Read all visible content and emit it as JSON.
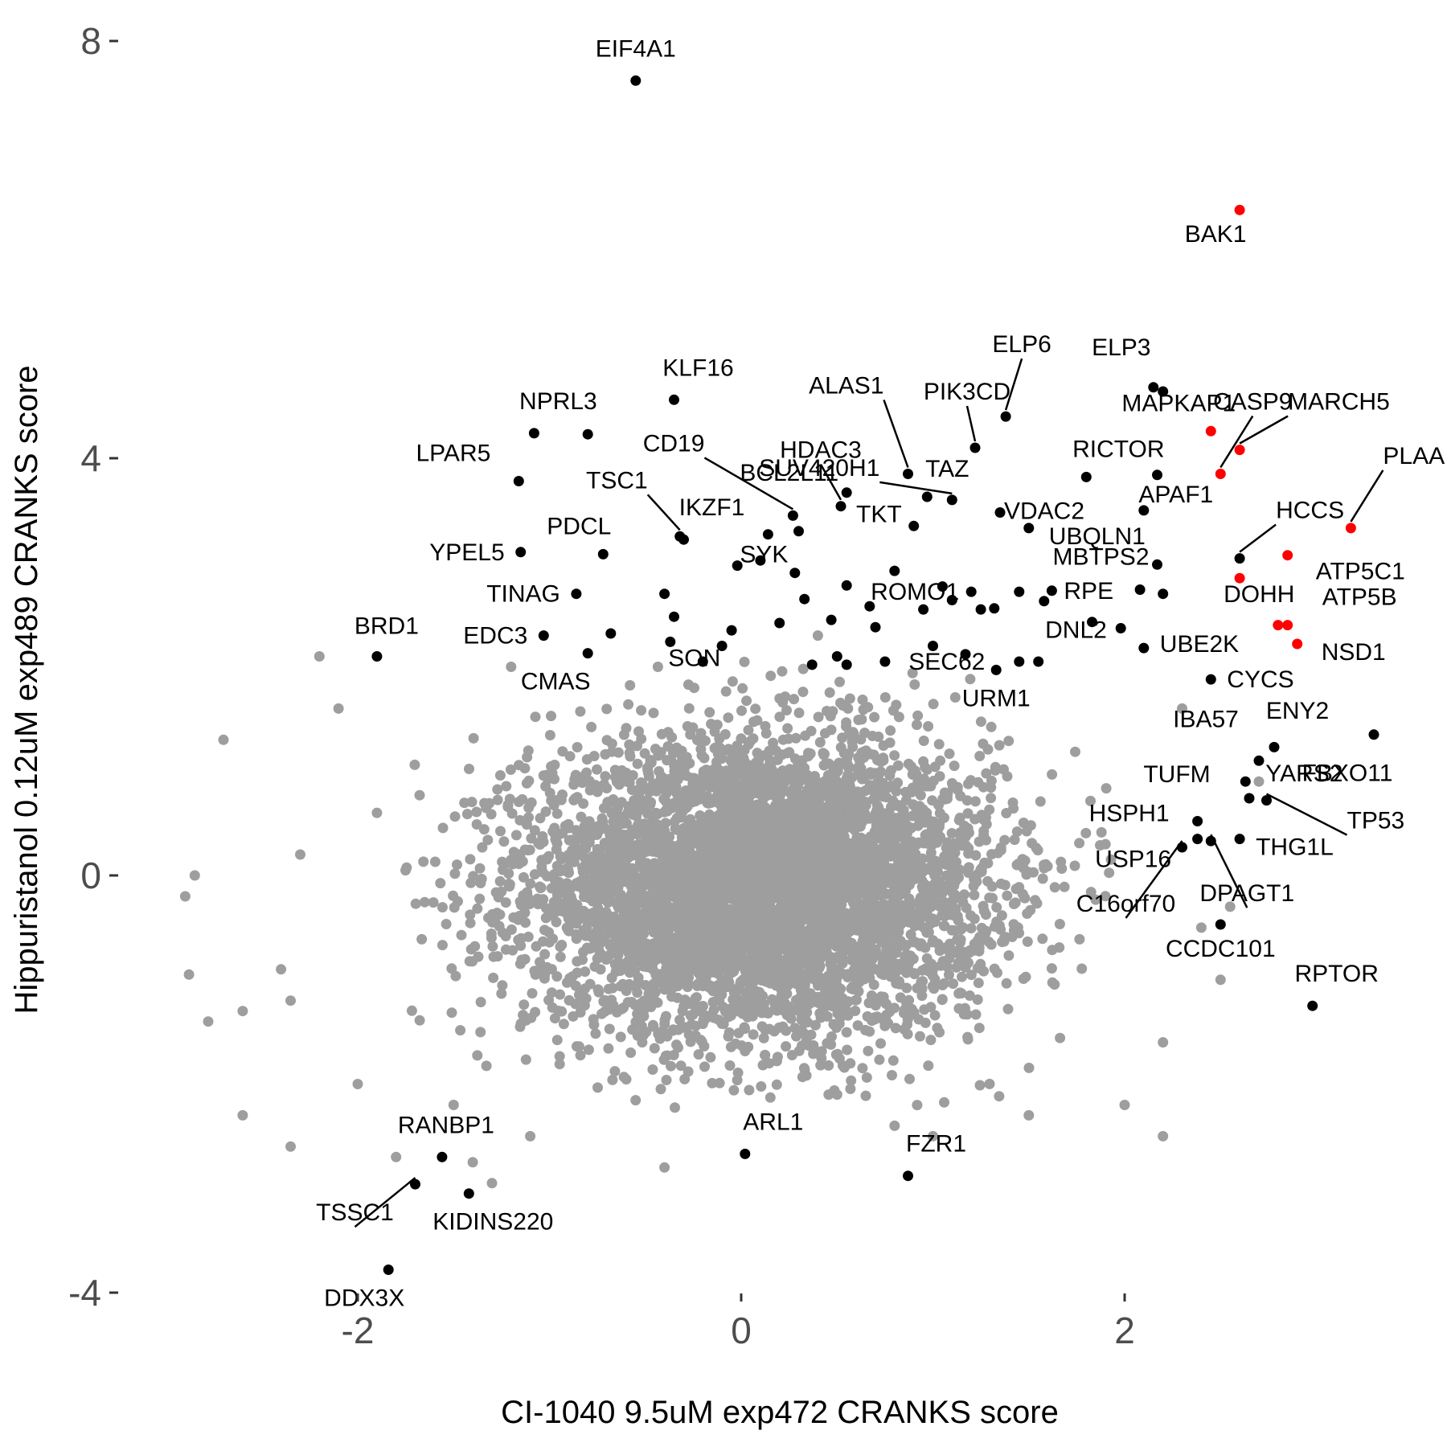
{
  "chart_data": {
    "type": "scatter",
    "title": "",
    "xlabel": "CI-1040 9.5uM exp472 CRANKS score",
    "ylabel": "Hippuristanol 0.12uM exp489 CRANKS score",
    "xlim": [
      -2.95,
      3.5
    ],
    "ylim": [
      -4.3,
      8.3
    ],
    "x_ticks": [
      -2,
      0,
      2
    ],
    "x_tick_labels": [
      "-2",
      "0",
      "2"
    ],
    "y_ticks": [
      -4,
      0,
      4,
      8
    ],
    "y_tick_labels": [
      "-4",
      "0",
      "4",
      "8"
    ],
    "grid": false,
    "legend": "none",
    "colors": {
      "background_points": "#9e9e9e",
      "labeled_points": "#000000",
      "highlighted_points": "#ff0000",
      "label_text": "#000000",
      "tick_text": "#4d4d4d"
    },
    "background_cloud": {
      "center": [
        0.1,
        -0.1
      ],
      "sd": [
        0.6,
        0.7
      ],
      "n": 5500,
      "outliers": [
        [
          -2.9,
          -0.2
        ],
        [
          -2.85,
          0.0
        ],
        [
          -2.88,
          -0.95
        ],
        [
          -2.78,
          -1.4
        ],
        [
          -2.6,
          -1.3
        ],
        [
          -2.7,
          1.3
        ],
        [
          -2.4,
          -0.9
        ],
        [
          -2.35,
          -1.2
        ],
        [
          -2.2,
          2.1
        ],
        [
          -2.3,
          0.2
        ],
        [
          -2.6,
          -2.3
        ],
        [
          -2.35,
          -2.6
        ],
        [
          -2.1,
          1.6
        ],
        [
          -1.9,
          0.6
        ],
        [
          -1.8,
          -2.7
        ],
        [
          -1.5,
          -2.2
        ],
        [
          -1.4,
          -2.75
        ],
        [
          -1.3,
          -2.95
        ],
        [
          -1.2,
          2.0
        ],
        [
          -1.1,
          -2.5
        ],
        [
          -2.0,
          -2.0
        ],
        [
          2.3,
          1.6
        ],
        [
          2.4,
          -0.5
        ],
        [
          2.5,
          -1.0
        ],
        [
          2.7,
          0.9
        ],
        [
          2.2,
          -1.6
        ],
        [
          2.0,
          -2.2
        ],
        [
          2.2,
          -2.5
        ],
        [
          1.9,
          0.3
        ],
        [
          1.5,
          -2.3
        ],
        [
          1.0,
          -2.5
        ],
        [
          2.55,
          -0.3
        ],
        [
          0.8,
          -2.4
        ],
        [
          -0.4,
          -2.8
        ],
        [
          0.4,
          2.3
        ]
      ]
    },
    "points": [
      {
        "label": "EIF4A1",
        "x": -0.55,
        "y": 7.62,
        "group": "labeled"
      },
      {
        "label": "BAK1",
        "x": 2.6,
        "y": 6.38,
        "group": "highlighted"
      },
      {
        "label": "ELP6",
        "x": 1.38,
        "y": 4.4,
        "group": "labeled"
      },
      {
        "label": "ELP3",
        "x": 2.15,
        "y": 4.68,
        "group": "labeled"
      },
      {
        "label": "",
        "x": 2.2,
        "y": 4.64,
        "group": "labeled"
      },
      {
        "label": "CASP9",
        "x": 2.5,
        "y": 3.85,
        "group": "highlighted"
      },
      {
        "label": "MAPKAP1",
        "x": 2.45,
        "y": 4.26,
        "group": "highlighted"
      },
      {
        "label": "MARCH5",
        "x": 2.6,
        "y": 4.08,
        "group": "highlighted"
      },
      {
        "label": "PLAA",
        "x": 3.18,
        "y": 3.33,
        "group": "highlighted"
      },
      {
        "label": "ATP5C1",
        "x": 2.85,
        "y": 3.07,
        "group": "highlighted"
      },
      {
        "label": "DOHH",
        "x": 2.6,
        "y": 2.85,
        "group": "highlighted"
      },
      {
        "label": "ATP5B",
        "x": 2.8,
        "y": 2.4,
        "group": "highlighted"
      },
      {
        "label": "",
        "x": 2.85,
        "y": 2.4,
        "group": "highlighted"
      },
      {
        "label": "NSD1",
        "x": 2.9,
        "y": 2.22,
        "group": "highlighted"
      },
      {
        "label": "KLF16",
        "x": -0.35,
        "y": 4.56,
        "group": "labeled"
      },
      {
        "label": "NPRL3",
        "x": -1.08,
        "y": 4.24,
        "group": "labeled"
      },
      {
        "label": "",
        "x": -0.8,
        "y": 4.23,
        "group": "labeled"
      },
      {
        "label": "LPAR5",
        "x": -1.16,
        "y": 3.78,
        "group": "labeled"
      },
      {
        "label": "YPEL5",
        "x": -1.15,
        "y": 3.1,
        "group": "labeled"
      },
      {
        "label": "PDCL",
        "x": -0.72,
        "y": 3.08,
        "group": "labeled"
      },
      {
        "label": "TINAG",
        "x": -0.86,
        "y": 2.7,
        "group": "labeled"
      },
      {
        "label": "BRD1",
        "x": -1.9,
        "y": 2.1,
        "group": "labeled"
      },
      {
        "label": "EDC3",
        "x": -1.03,
        "y": 2.3,
        "group": "labeled"
      },
      {
        "label": "CMAS",
        "x": -0.8,
        "y": 2.13,
        "group": "labeled"
      },
      {
        "label": "SON",
        "x": -0.37,
        "y": 2.24,
        "group": "labeled"
      },
      {
        "label": "TSC1",
        "x": -0.32,
        "y": 3.25,
        "group": "labeled"
      },
      {
        "label": "IKZF1",
        "x": -0.3,
        "y": 3.22,
        "group": "labeled"
      },
      {
        "label": "CD19",
        "x": 0.27,
        "y": 3.45,
        "group": "labeled"
      },
      {
        "label": "BCL2L11",
        "x": 0.55,
        "y": 3.67,
        "group": "labeled"
      },
      {
        "label": "HDAC3",
        "x": 0.52,
        "y": 3.54,
        "group": "labeled"
      },
      {
        "label": "ALAS1",
        "x": 0.87,
        "y": 3.85,
        "group": "labeled"
      },
      {
        "label": "PIK3CD",
        "x": 1.22,
        "y": 4.1,
        "group": "labeled"
      },
      {
        "label": "TAZ",
        "x": 0.97,
        "y": 3.63,
        "group": "labeled"
      },
      {
        "label": "VDAC2",
        "x": 1.35,
        "y": 3.48,
        "group": "labeled"
      },
      {
        "label": "RICTOR",
        "x": 1.8,
        "y": 3.82,
        "group": "labeled"
      },
      {
        "label": "",
        "x": 2.17,
        "y": 3.84,
        "group": "labeled"
      },
      {
        "label": "APAF1",
        "x": 2.1,
        "y": 3.5,
        "group": "labeled"
      },
      {
        "label": "SUV420H1",
        "x": 1.1,
        "y": 3.6,
        "group": "labeled"
      },
      {
        "label": "UBQLN1",
        "x": 1.5,
        "y": 3.33,
        "group": "labeled"
      },
      {
        "label": "MBTPS2",
        "x": 2.17,
        "y": 2.98,
        "group": "labeled"
      },
      {
        "label": "HCCS",
        "x": 2.6,
        "y": 3.04,
        "group": "labeled"
      },
      {
        "label": "TKT",
        "x": 0.9,
        "y": 3.35,
        "group": "labeled"
      },
      {
        "label": "SYK",
        "x": 0.14,
        "y": 3.27,
        "group": "labeled"
      },
      {
        "label": "ROMO1",
        "x": 1.2,
        "y": 2.72,
        "group": "labeled"
      },
      {
        "label": "RPE",
        "x": 1.62,
        "y": 2.73,
        "group": "labeled"
      },
      {
        "label": "",
        "x": 2.08,
        "y": 2.74,
        "group": "labeled"
      },
      {
        "label": "DNL2",
        "x": 1.83,
        "y": 2.43,
        "group": "labeled"
      },
      {
        "label": "",
        "x": 1.98,
        "y": 2.37,
        "group": "labeled"
      },
      {
        "label": "UBE2K",
        "x": 2.1,
        "y": 2.18,
        "group": "labeled"
      },
      {
        "label": "",
        "x": 2.2,
        "y": 2.7,
        "group": "labeled"
      },
      {
        "label": "CYCS",
        "x": 2.45,
        "y": 1.88,
        "group": "labeled"
      },
      {
        "label": "SEC62",
        "x": 1.45,
        "y": 2.05,
        "group": "labeled"
      },
      {
        "label": "URM1",
        "x": 1.33,
        "y": 1.97,
        "group": "labeled"
      },
      {
        "label": "ENY2",
        "x": 3.3,
        "y": 1.35,
        "group": "labeled"
      },
      {
        "label": "IBA57",
        "x": 2.78,
        "y": 1.23,
        "group": "labeled"
      },
      {
        "label": "FBXO11",
        "x": 2.7,
        "y": 1.1,
        "group": "labeled"
      },
      {
        "label": "YARS2",
        "x": 2.63,
        "y": 0.9,
        "group": "labeled"
      },
      {
        "label": "TP53",
        "x": 2.74,
        "y": 0.72,
        "group": "labeled"
      },
      {
        "label": "TUFM",
        "x": 2.65,
        "y": 0.74,
        "group": "labeled"
      },
      {
        "label": "HSPH1",
        "x": 2.38,
        "y": 0.52,
        "group": "labeled"
      },
      {
        "label": "THG1L",
        "x": 2.6,
        "y": 0.35,
        "group": "labeled"
      },
      {
        "label": "USP16",
        "x": 2.38,
        "y": 0.35,
        "group": "labeled"
      },
      {
        "label": "C16orf70",
        "x": 2.3,
        "y": 0.27,
        "group": "labeled"
      },
      {
        "label": "DPAGT1",
        "x": 2.45,
        "y": 0.33,
        "group": "labeled"
      },
      {
        "label": "CCDC101",
        "x": 2.5,
        "y": -0.47,
        "group": "labeled"
      },
      {
        "label": "RPTOR",
        "x": 2.98,
        "y": -1.25,
        "group": "labeled"
      },
      {
        "label": "ARL1",
        "x": 0.02,
        "y": -2.67,
        "group": "labeled"
      },
      {
        "label": "FZR1",
        "x": 0.87,
        "y": -2.88,
        "group": "labeled"
      },
      {
        "label": "RANBP1",
        "x": -1.56,
        "y": -2.7,
        "group": "labeled"
      },
      {
        "label": "TSSC1",
        "x": -1.7,
        "y": -2.96,
        "group": "labeled"
      },
      {
        "label": "KIDINS220",
        "x": -1.42,
        "y": -3.05,
        "group": "labeled"
      },
      {
        "label": "DDX3X",
        "x": -1.84,
        "y": -3.78,
        "group": "labeled"
      },
      {
        "label": "",
        "x": 0.1,
        "y": 3.02,
        "group": "labeled"
      },
      {
        "label": "",
        "x": -0.02,
        "y": 2.97,
        "group": "labeled"
      },
      {
        "label": "",
        "x": 0.28,
        "y": 2.9,
        "group": "labeled"
      },
      {
        "label": "",
        "x": 0.33,
        "y": 2.65,
        "group": "labeled"
      },
      {
        "label": "",
        "x": 0.47,
        "y": 2.45,
        "group": "labeled"
      },
      {
        "label": "",
        "x": 0.55,
        "y": 2.78,
        "group": "labeled"
      },
      {
        "label": "",
        "x": 0.67,
        "y": 2.58,
        "group": "labeled"
      },
      {
        "label": "",
        "x": 0.7,
        "y": 2.38,
        "group": "labeled"
      },
      {
        "label": "",
        "x": 0.8,
        "y": 2.92,
        "group": "labeled"
      },
      {
        "label": "",
        "x": 0.95,
        "y": 2.55,
        "group": "labeled"
      },
      {
        "label": "",
        "x": 1.05,
        "y": 2.77,
        "group": "labeled"
      },
      {
        "label": "",
        "x": 1.1,
        "y": 2.64,
        "group": "labeled"
      },
      {
        "label": "",
        "x": 1.25,
        "y": 2.55,
        "group": "labeled"
      },
      {
        "label": "",
        "x": 1.32,
        "y": 2.56,
        "group": "labeled"
      },
      {
        "label": "",
        "x": 1.45,
        "y": 2.72,
        "group": "labeled"
      },
      {
        "label": "",
        "x": 1.58,
        "y": 2.63,
        "group": "labeled"
      },
      {
        "label": "",
        "x": 1.17,
        "y": 2.12,
        "group": "labeled"
      },
      {
        "label": "",
        "x": 1.0,
        "y": 2.2,
        "group": "labeled"
      },
      {
        "label": "",
        "x": 0.75,
        "y": 2.05,
        "group": "labeled"
      },
      {
        "label": "",
        "x": 0.55,
        "y": 2.02,
        "group": "labeled"
      },
      {
        "label": "",
        "x": 0.5,
        "y": 2.1,
        "group": "labeled"
      },
      {
        "label": "",
        "x": 0.37,
        "y": 2.02,
        "group": "labeled"
      },
      {
        "label": "",
        "x": 0.2,
        "y": 2.42,
        "group": "labeled"
      },
      {
        "label": "",
        "x": -0.05,
        "y": 2.35,
        "group": "labeled"
      },
      {
        "label": "",
        "x": -0.35,
        "y": 2.48,
        "group": "labeled"
      },
      {
        "label": "",
        "x": -0.4,
        "y": 2.7,
        "group": "labeled"
      },
      {
        "label": "",
        "x": -0.68,
        "y": 2.32,
        "group": "labeled"
      },
      {
        "label": "",
        "x": -0.2,
        "y": 2.05,
        "group": "labeled"
      },
      {
        "label": "",
        "x": -0.1,
        "y": 2.2,
        "group": "labeled"
      },
      {
        "label": "",
        "x": 1.55,
        "y": 2.05,
        "group": "labeled"
      },
      {
        "label": "",
        "x": 0.3,
        "y": 3.3,
        "group": "labeled"
      }
    ]
  }
}
